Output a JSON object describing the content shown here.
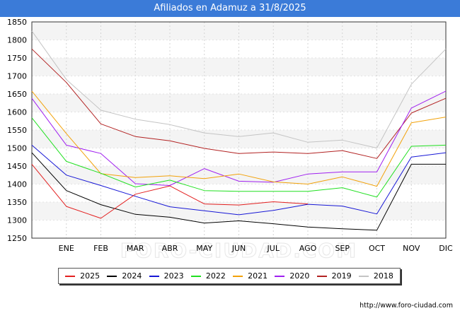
{
  "chart_data": {
    "type": "line",
    "title": "Afiliados en Adamuz a 31/8/2025",
    "xlabel": "",
    "ylabel": "",
    "categories": [
      "",
      "ENE",
      "FEB",
      "MAR",
      "ABR",
      "MAY",
      "JUN",
      "JUL",
      "AGO",
      "SEP",
      "OCT",
      "NOV",
      "DIC"
    ],
    "yticks": [
      1250,
      1300,
      1350,
      1400,
      1450,
      1500,
      1550,
      1600,
      1650,
      1700,
      1750,
      1800,
      1850
    ],
    "ylim": [
      1250,
      1850
    ],
    "grid": true,
    "legend_position": "bottom",
    "series": [
      {
        "name": "2025",
        "color": "#e32020",
        "values": [
          1455,
          1338,
          1305,
          1372,
          1395,
          1345,
          1342,
          1351,
          1345,
          null,
          null,
          null,
          null
        ]
      },
      {
        "name": "2024",
        "color": "#000000",
        "values": [
          1487,
          1382,
          1343,
          1316,
          1308,
          1292,
          1298,
          1290,
          1281,
          1276,
          1272,
          1455,
          1455
        ]
      },
      {
        "name": "2023",
        "color": "#1717d6",
        "values": [
          1508,
          1425,
          1396,
          1366,
          1337,
          1326,
          1315,
          1327,
          1344,
          1339,
          1317,
          1475,
          1487
        ]
      },
      {
        "name": "2022",
        "color": "#20e020",
        "values": [
          1584,
          1463,
          1430,
          1392,
          1411,
          1382,
          1380,
          1380,
          1380,
          1390,
          1364,
          1505,
          1508
        ]
      },
      {
        "name": "2021",
        "color": "#f2a20a",
        "values": [
          1658,
          1540,
          1429,
          1418,
          1423,
          1415,
          1428,
          1406,
          1400,
          1420,
          1394,
          1570,
          1586
        ]
      },
      {
        "name": "2020",
        "color": "#a020f0",
        "values": [
          1638,
          1508,
          1485,
          1401,
          1396,
          1443,
          1408,
          1405,
          1428,
          1434,
          1434,
          1611,
          1658
        ]
      },
      {
        "name": "2019",
        "color": "#b22222",
        "values": [
          1775,
          1682,
          1567,
          1532,
          1520,
          1499,
          1485,
          1489,
          1485,
          1493,
          1471,
          1597,
          1638
        ]
      },
      {
        "name": "2018",
        "color": "#c4c4c4",
        "values": [
          1825,
          1690,
          1605,
          1580,
          1565,
          1542,
          1532,
          1542,
          1516,
          1522,
          1500,
          1677,
          1775
        ]
      }
    ]
  },
  "legend": {
    "items": [
      {
        "label": "2025",
        "color": "#e32020"
      },
      {
        "label": "2024",
        "color": "#000000"
      },
      {
        "label": "2023",
        "color": "#1717d6"
      },
      {
        "label": "2022",
        "color": "#20e020"
      },
      {
        "label": "2021",
        "color": "#f2a20a"
      },
      {
        "label": "2020",
        "color": "#a020f0"
      },
      {
        "label": "2019",
        "color": "#b22222"
      },
      {
        "label": "2018",
        "color": "#c4c4c4"
      }
    ]
  },
  "watermark": "FORO-CIUDAD.COM",
  "source": "http://www.foro-ciudad.com"
}
